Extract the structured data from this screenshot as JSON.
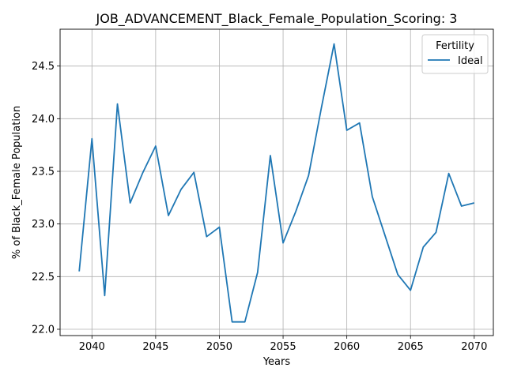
{
  "chart_data": {
    "type": "line",
    "title": "JOB_ADVANCEMENT_Black_Female_Population_Scoring: 3",
    "xlabel": "Years",
    "ylabel": "% of Black_Female Population",
    "xlim": [
      2037.5,
      2071.5
    ],
    "ylim": [
      21.94,
      24.85
    ],
    "xticks": [
      2040,
      2045,
      2050,
      2055,
      2060,
      2065,
      2070
    ],
    "yticks": [
      22.0,
      22.5,
      23.0,
      23.5,
      24.0,
      24.5
    ],
    "grid": true,
    "legend": {
      "title": "Fertility",
      "placement": "top-right"
    },
    "series": [
      {
        "name": "Ideal",
        "color": "#1f77b4",
        "x": [
          2039,
          2040,
          2041,
          2042,
          2043,
          2044,
          2045,
          2046,
          2047,
          2048,
          2049,
          2050,
          2051,
          2052,
          2053,
          2054,
          2055,
          2056,
          2057,
          2058,
          2059,
          2060,
          2061,
          2062,
          2063,
          2064,
          2065,
          2066,
          2067,
          2068,
          2069,
          2070
        ],
        "y": [
          22.55,
          23.81,
          22.32,
          24.14,
          23.2,
          23.49,
          23.74,
          23.08,
          23.33,
          23.49,
          22.88,
          22.97,
          22.07,
          22.07,
          22.54,
          23.65,
          22.82,
          23.12,
          23.46,
          24.1,
          24.71,
          23.89,
          23.96,
          23.26,
          22.89,
          22.52,
          22.37,
          22.78,
          22.92,
          23.48,
          23.17,
          23.2
        ]
      }
    ]
  }
}
